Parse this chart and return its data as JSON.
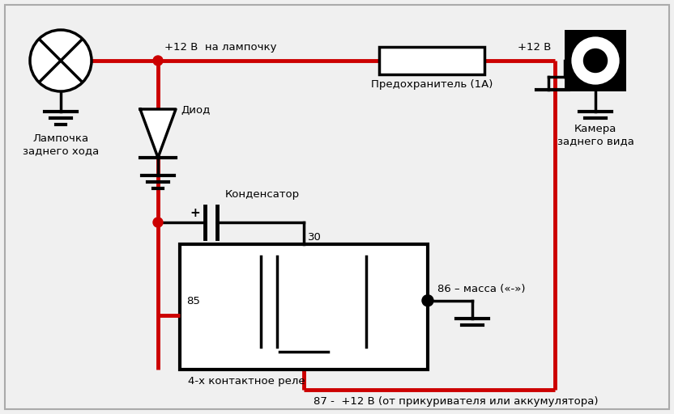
{
  "bg_color": "#f0f0f0",
  "border_color": "#aaaaaa",
  "red": "#cc0000",
  "black": "#000000",
  "white": "#ffffff",
  "label_lamp": "Лампочка\nзаднего хода",
  "label_diode": "Диод",
  "label_cap": "Конденсатор",
  "label_relay": "4-х контактное реле",
  "label_fuse": "Предохранитель (1А)",
  "label_camera": "Камера\nзаднего вида",
  "label_12v_lamp": "+12 В  на лампочку",
  "label_12v_cam": "+12 В",
  "label_30": "30",
  "label_85": "85",
  "label_86": "86 – масса («-»)",
  "label_87": "87 -  +12 В (от прикуривателя или аккумулятора)",
  "label_plus": "+"
}
